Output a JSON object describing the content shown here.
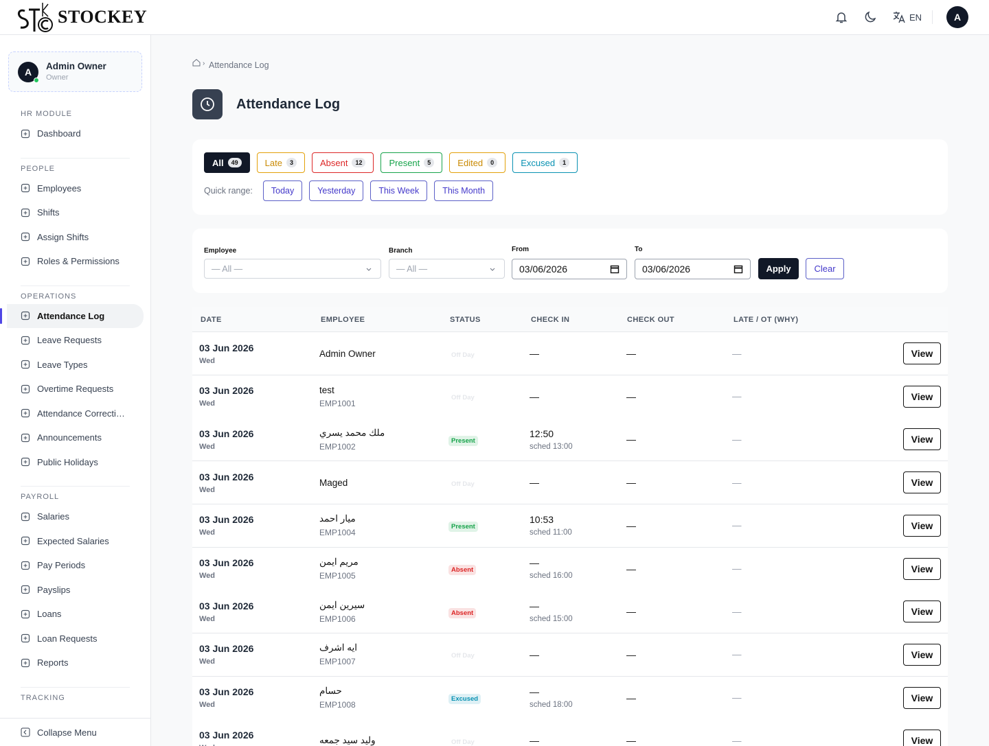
{
  "header": {
    "brand": "STOCKEY",
    "language": "EN",
    "avatar": "A"
  },
  "sidebar": {
    "user": {
      "initial": "A",
      "name": "Admin Owner",
      "role": "Owner"
    },
    "sections": [
      {
        "title": "HR MODULE",
        "items": [
          "Dashboard"
        ]
      },
      {
        "title": "PEOPLE",
        "items": [
          "Employees",
          "Shifts",
          "Assign Shifts",
          "Roles & Permissions"
        ]
      },
      {
        "title": "OPERATIONS",
        "items": [
          "Attendance Log",
          "Leave Requests",
          "Leave Types",
          "Overtime Requests",
          "Attendance Correcti…",
          "Announcements",
          "Public Holidays"
        ]
      },
      {
        "title": "PAYROLL",
        "items": [
          "Salaries",
          "Expected Salaries",
          "Pay Periods",
          "Payslips",
          "Loans",
          "Loan Requests",
          "Reports"
        ]
      },
      {
        "title": "TRACKING"
      }
    ],
    "active": {
      "section": 2,
      "item": 0
    },
    "collapse": "Collapse Menu"
  },
  "breadcrumb": {
    "current": "Attendance Log"
  },
  "page": {
    "title": "Attendance Log"
  },
  "status_chips": [
    {
      "label": "All",
      "count": 49,
      "color": "#111827",
      "active": true
    },
    {
      "label": "Late",
      "count": 3,
      "color": "#e3a008"
    },
    {
      "label": "Absent",
      "count": 12,
      "color": "#dc2626"
    },
    {
      "label": "Present",
      "count": 5,
      "color": "#16a34a"
    },
    {
      "label": "Edited",
      "count": 0,
      "color": "#e3a008"
    },
    {
      "label": "Excused",
      "count": 1,
      "color": "#0891b2"
    }
  ],
  "quick_range": {
    "label": "Quick range:",
    "options": [
      "Today",
      "Yesterday",
      "This Week",
      "This Month"
    ]
  },
  "filters": {
    "employee": {
      "label": "Employee",
      "value": "— All —"
    },
    "branch": {
      "label": "Branch",
      "value": "— All —"
    },
    "from": {
      "label": "From",
      "value": "03/06/2026"
    },
    "to": {
      "label": "To",
      "value": "03/06/2026"
    },
    "apply": "Apply",
    "clear": "Clear"
  },
  "table": {
    "columns": [
      "DATE",
      "EMPLOYEE",
      "STATUS",
      "CHECK IN",
      "CHECK OUT",
      "LATE / OT (WHY)"
    ],
    "rows": [
      {
        "date": "03 Jun 2026",
        "day": "Wed",
        "name": "Admin Owner",
        "status": "Off Day",
        "status_color": "#d1d5db",
        "check_in": "—",
        "check_out": "—",
        "late": "—",
        "action": "View"
      },
      {
        "date": "03 Jun 2026",
        "day": "Wed",
        "name": "test",
        "code": "EMP1001",
        "status": "Off Day",
        "status_color": "#d1d5db",
        "check_in": "—",
        "check_out": "—",
        "late": "—",
        "action": "View"
      },
      {
        "date": "03 Jun 2026",
        "day": "Wed",
        "name": "ملك محمد يسري",
        "code": "EMP1002",
        "status": "Present",
        "status_color": "#16a34a",
        "check_in": "12:50",
        "sched": "sched 13:00",
        "check_out": "—",
        "late": "—",
        "action": "View"
      },
      {
        "date": "03 Jun 2026",
        "day": "Wed",
        "name": "Maged",
        "status": "Off Day",
        "status_color": "#d1d5db",
        "check_in": "—",
        "check_out": "—",
        "late": "—",
        "action": "View"
      },
      {
        "date": "03 Jun 2026",
        "day": "Wed",
        "name": "ميار احمد",
        "code": "EMP1004",
        "status": "Present",
        "status_color": "#16a34a",
        "check_in": "10:53",
        "sched": "sched 11:00",
        "check_out": "—",
        "late": "—",
        "action": "View"
      },
      {
        "date": "03 Jun 2026",
        "day": "Wed",
        "name": "مريم ايمن",
        "code": "EMP1005",
        "status": "Absent",
        "status_color": "#dc2626",
        "check_in": "—",
        "sched": "sched 16:00",
        "check_out": "—",
        "late": "—",
        "action": "View"
      },
      {
        "date": "03 Jun 2026",
        "day": "Wed",
        "name": "سيرين ايمن",
        "code": "EMP1006",
        "status": "Absent",
        "status_color": "#dc2626",
        "check_in": "—",
        "sched": "sched 15:00",
        "check_out": "—",
        "late": "—",
        "action": "View"
      },
      {
        "date": "03 Jun 2026",
        "day": "Wed",
        "name": "ايه اشرف",
        "code": "EMP1007",
        "status": "Off Day",
        "status_color": "#d1d5db",
        "check_in": "—",
        "check_out": "—",
        "late": "—",
        "action": "View"
      },
      {
        "date": "03 Jun 2026",
        "day": "Wed",
        "name": "حسام",
        "code": "EMP1008",
        "status": "Excused",
        "status_color": "#0891b2",
        "check_in": "—",
        "sched": "sched 18:00",
        "check_out": "—",
        "late": "—",
        "action": "View"
      },
      {
        "date": "03 Jun 2026",
        "day": "Wed",
        "name": "وليد سيد جمعه",
        "status": "Off Day",
        "status_color": "#d1d5db",
        "check_in": "—",
        "check_out": "—",
        "late": "—",
        "action": "View"
      }
    ]
  }
}
